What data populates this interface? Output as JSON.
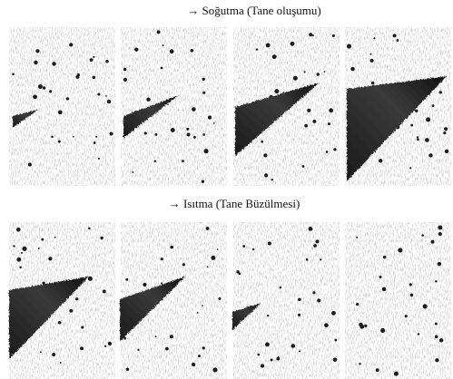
{
  "rows": [
    {
      "caption": "→ Soğutma (Tane oluşumu)"
    },
    {
      "caption": "→ Isıtma (Tane Büzülmesi)"
    }
  ]
}
